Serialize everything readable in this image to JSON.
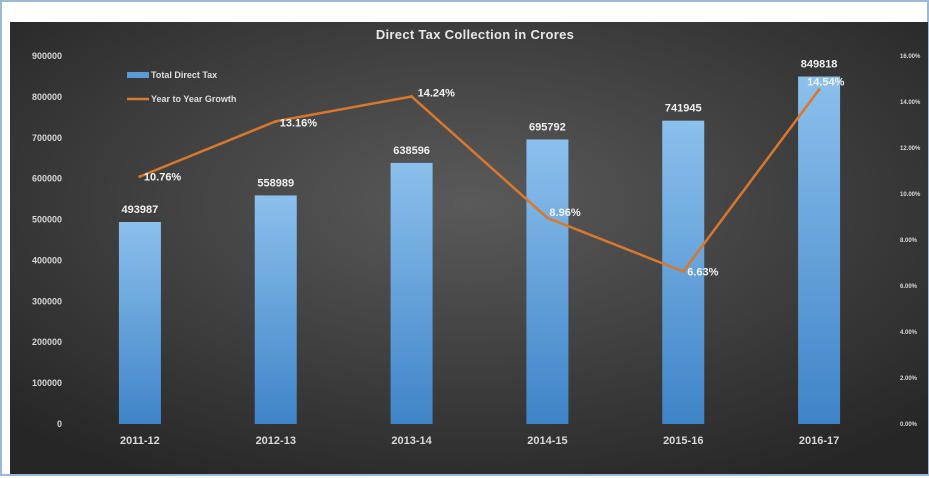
{
  "chart_data": {
    "type": "bar",
    "title": "Direct Tax Collection in Crores",
    "categories": [
      "2011-12",
      "2012-13",
      "2013-14",
      "2014-15",
      "2015-16",
      "2016-17"
    ],
    "series": [
      {
        "name": "Total Direct Tax",
        "type": "bar",
        "axis": "left",
        "values": [
          493987,
          558989,
          638596,
          695792,
          741945,
          849818
        ],
        "labels": [
          "493987",
          "558989",
          "638596",
          "695792",
          "741945",
          "849818"
        ]
      },
      {
        "name": "Year to Year Growth",
        "type": "line",
        "axis": "right",
        "values": [
          10.76,
          13.16,
          14.24,
          8.96,
          6.63,
          14.54
        ],
        "labels": [
          "10.76%",
          "13.16%",
          "14.24%",
          "8.96%",
          "6.63%",
          "14.54%"
        ]
      }
    ],
    "ylim": [
      0,
      900000
    ],
    "y_ticks": [
      "0",
      "100000",
      "200000",
      "300000",
      "400000",
      "500000",
      "600000",
      "700000",
      "800000",
      "900000"
    ],
    "y2lim": [
      0,
      16
    ],
    "y2_ticks": [
      "0.00%",
      "2.00%",
      "4.00%",
      "6.00%",
      "8.00%",
      "10.00%",
      "12.00%",
      "14.00%",
      "16.00%"
    ],
    "legend_position": "top-left",
    "grid": false
  },
  "colors": {
    "background_dark": "#262626",
    "background_light": "#595959",
    "bar_top": "#8cc0ec",
    "bar_bottom": "#3f84c8",
    "line": "#d9782c"
  }
}
